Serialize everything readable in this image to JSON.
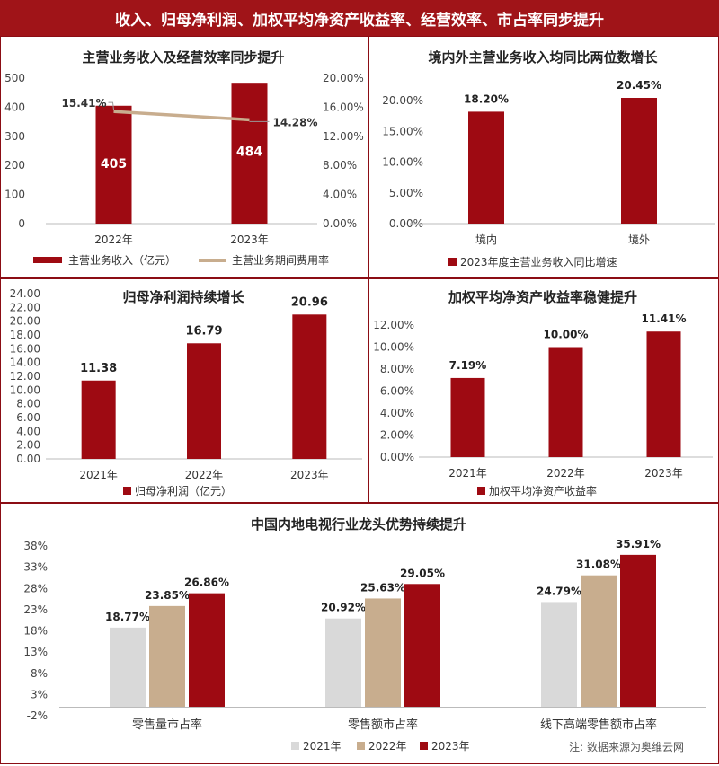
{
  "header": {
    "title": "收入、归母净利润、加权平均净资产收益率、经营效率、市占率同步提升"
  },
  "footer": {
    "source_note": "注:  数据来源为奥维云网"
  },
  "colors": {
    "dark_red": "#9e0a12",
    "tan": "#c8ad8e",
    "light_gray": "#d9d9d9",
    "banner": "#a01418"
  },
  "chart_data": [
    {
      "type": "bar",
      "title": "主营业务收入及经营效率同步提升",
      "categories": [
        "2022年",
        "2023年"
      ],
      "series": [
        {
          "name": "主营业务收入（亿元）",
          "values": [
            405,
            484
          ],
          "value_labels": [
            "405",
            "484"
          ],
          "axis": "left",
          "kind": "bar"
        },
        {
          "name": "主营业务期间费用率",
          "values": [
            15.41,
            14.28
          ],
          "value_labels": [
            "15.41%",
            "14.28%"
          ],
          "axis": "right",
          "kind": "line"
        }
      ],
      "yticks_left": [
        "0",
        "100",
        "200",
        "300",
        "400",
        "500"
      ],
      "yticks_right": [
        "0.00%",
        "4.00%",
        "8.00%",
        "12.00%",
        "16.00%",
        "20.00%"
      ],
      "ylim_left": [
        0,
        500
      ],
      "ylim_right": [
        0,
        20
      ],
      "legend": "bottom"
    },
    {
      "type": "bar",
      "title": "境内外主营业务收入均同比两位数增长",
      "categories": [
        "境内",
        "境外"
      ],
      "series": [
        {
          "name": "2023年度主营业务收入同比增速",
          "values": [
            18.2,
            20.45
          ],
          "value_labels": [
            "18.20%",
            "20.45%"
          ]
        }
      ],
      "yticks": [
        "0.00%",
        "5.00%",
        "10.00%",
        "15.00%",
        "20.00%"
      ],
      "ylim": [
        0,
        20.45
      ],
      "legend": "bottom"
    },
    {
      "type": "bar",
      "title": "归母净利润持续增长",
      "categories": [
        "2021年",
        "2022年",
        "2023年"
      ],
      "series": [
        {
          "name": "归母净利润（亿元）",
          "values": [
            11.38,
            16.79,
            20.96
          ],
          "value_labels": [
            "11.38",
            "16.79",
            "20.96"
          ]
        }
      ],
      "yticks": [
        "0.00",
        "2.00",
        "4.00",
        "6.00",
        "8.00",
        "10.00",
        "12.00",
        "14.00",
        "16.00",
        "18.00",
        "20.00",
        "22.00",
        "24.00"
      ],
      "ylim": [
        0,
        24
      ],
      "legend": "bottom"
    },
    {
      "type": "bar",
      "title": "加权平均净资产收益率稳健提升",
      "categories": [
        "2021年",
        "2022年",
        "2023年"
      ],
      "series": [
        {
          "name": "加权平均净资产收益率",
          "values": [
            7.19,
            10.0,
            11.41
          ],
          "value_labels": [
            "7.19%",
            "10.00%",
            "11.41%"
          ]
        }
      ],
      "yticks": [
        "0.00%",
        "2.00%",
        "4.00%",
        "6.00%",
        "8.00%",
        "10.00%",
        "12.00%"
      ],
      "ylim": [
        0,
        12
      ],
      "legend": "bottom"
    },
    {
      "type": "bar",
      "title": "中国内地电视行业龙头优势持续提升",
      "categories": [
        "零售量市占率",
        "零售额市占率",
        "线下高端零售额市占率"
      ],
      "series": [
        {
          "name": "2021年",
          "values": [
            18.77,
            20.92,
            24.79
          ],
          "value_labels": [
            "18.77%",
            "20.92%",
            "24.79%"
          ]
        },
        {
          "name": "2022年",
          "values": [
            23.85,
            25.63,
            31.08
          ],
          "value_labels": [
            "23.85%",
            "25.63%",
            "31.08%"
          ]
        },
        {
          "name": "2023年",
          "values": [
            26.86,
            29.05,
            35.91
          ],
          "value_labels": [
            "26.86%",
            "29.05%",
            "35.91%"
          ]
        }
      ],
      "yticks": [
        "-2%",
        "3%",
        "8%",
        "13%",
        "18%",
        "23%",
        "28%",
        "33%",
        "38%"
      ],
      "ylim": [
        -2,
        38
      ],
      "legend": "bottom"
    }
  ]
}
